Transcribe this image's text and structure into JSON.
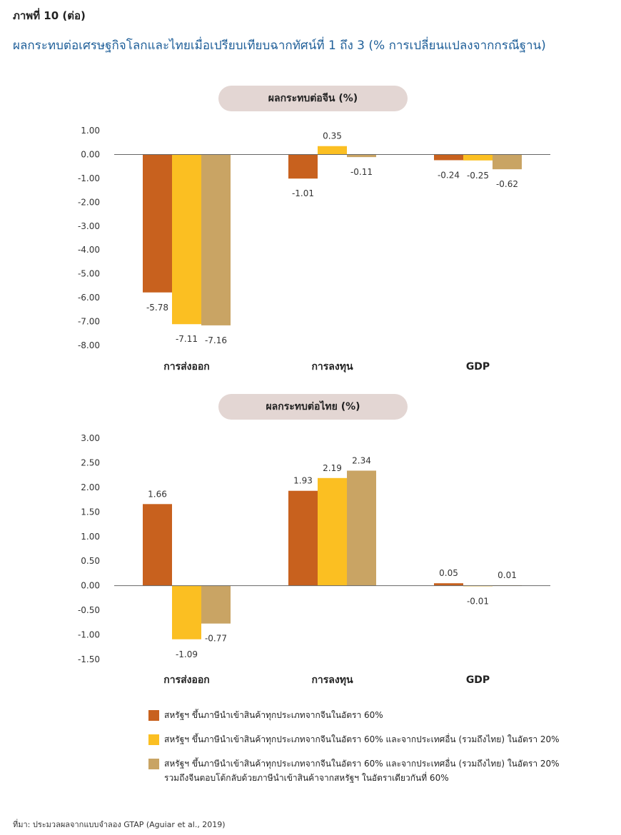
{
  "figure_label": "ภาพที่ 10 (ต่อ)",
  "figure_title": "ผลกระทบต่อเศรษฐกิจโลกและไทยเมื่อเปรียบเทียบฉากทัศน์ที่ 1 ถึง 3 (% การเปลี่ยนแปลงจากกรณีฐาน)",
  "colors": {
    "series1": "#c8611e",
    "series2": "#fbbf22",
    "series3": "#c9a464",
    "title": "#1f5f99",
    "pill": "#e3d6d3"
  },
  "legend": [
    {
      "label": "สหรัฐฯ ขึ้นภาษีนำเข้าสินค้าทุกประเภทจากจีนในอัตรา 60%"
    },
    {
      "label": "สหรัฐฯ ขึ้นภาษีนำเข้าสินค้าทุกประเภทจากจีนในอัตรา 60% และจากประเทศอื่น (รวมถึงไทย) ในอัตรา 20%"
    },
    {
      "label": "สหรัฐฯ ขึ้นภาษีนำเข้าสินค้าทุกประเภทจากจีนในอัตรา 60% และจากประเทศอื่น (รวมถึงไทย) ในอัตรา 20% รวมถึงจีนตอบโต้กลับด้วยภาษีนำเข้าสินค้าจากสหรัฐฯ ในอัตราเดียวกันที่ 60%"
    }
  ],
  "source": "ที่มา: ประมวลผลจากแบบจำลอง GTAP (Aguiar et al., 2019)",
  "chart_data": [
    {
      "type": "bar",
      "title": "ผลกระทบต่อจีน (%)",
      "categories": [
        "การส่งออก",
        "การลงทุน",
        "GDP"
      ],
      "ylim": [
        -8,
        1
      ],
      "yticks": [
        "1.00",
        "0.00",
        "-1.00",
        "-2.00",
        "-3.00",
        "-4.00",
        "-5.00",
        "-6.00",
        "-7.00",
        "-8.00"
      ],
      "ytick_values": [
        1,
        0,
        -1,
        -2,
        -3,
        -4,
        -5,
        -6,
        -7,
        -8
      ],
      "series": [
        {
          "values": [
            -5.78,
            -1.01,
            -0.24
          ],
          "labels": [
            "-5.78",
            "-1.01",
            "-0.24"
          ]
        },
        {
          "values": [
            -7.11,
            0.35,
            -0.25
          ],
          "labels": [
            "-7.11",
            "0.35",
            "-0.25"
          ]
        },
        {
          "values": [
            -7.16,
            -0.11,
            -0.62
          ],
          "labels": [
            "-7.16",
            "-0.11",
            "-0.62"
          ]
        }
      ]
    },
    {
      "type": "bar",
      "title": "ผลกระทบต่อไทย (%)",
      "categories": [
        "การส่งออก",
        "การลงทุน",
        "GDP"
      ],
      "ylim": [
        -1.5,
        3
      ],
      "yticks": [
        "3.00",
        "2.50",
        "2.00",
        "1.50",
        "1.00",
        "0.50",
        "0.00",
        "-0.50",
        "-1.00",
        "-1.50"
      ],
      "ytick_values": [
        3,
        2.5,
        2,
        1.5,
        1,
        0.5,
        0,
        -0.5,
        -1,
        -1.5
      ],
      "series": [
        {
          "values": [
            1.66,
            1.93,
            0.05
          ],
          "labels": [
            "1.66",
            "1.93",
            "0.05"
          ]
        },
        {
          "values": [
            -1.09,
            2.19,
            -0.01
          ],
          "labels": [
            "-1.09",
            "2.19",
            "-0.01"
          ]
        },
        {
          "values": [
            -0.77,
            2.34,
            0.01
          ],
          "labels": [
            "-0.77",
            "2.34",
            "0.01"
          ]
        }
      ]
    }
  ]
}
